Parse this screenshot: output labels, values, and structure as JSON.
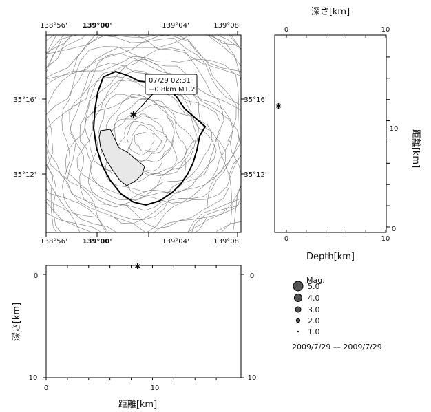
{
  "map": {
    "x_ticks": [
      "138°56'",
      "139°00'",
      "139°04'",
      "139°08'"
    ],
    "y_ticks": [
      "35°16'",
      "35°12'"
    ],
    "event_label_line1": "07/29 02:31",
    "event_label_line2": "−0.8km M1.2"
  },
  "side_panel": {
    "top_label": "深さ[km]",
    "bottom_label": "Depth[km]",
    "right_label": "距離[km]",
    "x_ticks": [
      "0",
      "10"
    ],
    "y_ticks": [
      "0",
      "10"
    ]
  },
  "bottom_panel": {
    "x_label": "距離[km]",
    "y_label": "深さ[km]",
    "x_ticks": [
      "0",
      "10"
    ],
    "y_ticks": [
      "0",
      "10"
    ]
  },
  "legend": {
    "title": "Mag.",
    "items": [
      "5.0",
      "4.0",
      "3.0",
      "2.0",
      "1.0"
    ],
    "date_range": "2009/7/29 –– 2009/7/29"
  },
  "chart_data": [
    {
      "type": "scatter",
      "panel": "epicenter map",
      "x_axis": "longitude",
      "y_axis": "latitude",
      "points": [
        {
          "time": "07/29 02:31",
          "depth_km": -0.8,
          "mag": 1.2
        }
      ]
    },
    {
      "type": "scatter",
      "panel": "depth vs distance (vertical)",
      "xlabel": "Depth[km]",
      "ylabel": "距離[km]",
      "xlim": [
        0,
        10
      ],
      "ylim": [
        0,
        18
      ],
      "points": [
        {
          "depth": -0.8,
          "distance": 11.4,
          "mag": 1.2
        }
      ]
    },
    {
      "type": "scatter",
      "panel": "distance vs depth (horizontal)",
      "xlabel": "距離[km]",
      "ylabel": "深さ[km]",
      "xlim": [
        0,
        18
      ],
      "ylim": [
        0,
        10
      ],
      "points": [
        {
          "distance": 8.6,
          "depth": -0.8,
          "mag": 1.2
        }
      ]
    }
  ]
}
